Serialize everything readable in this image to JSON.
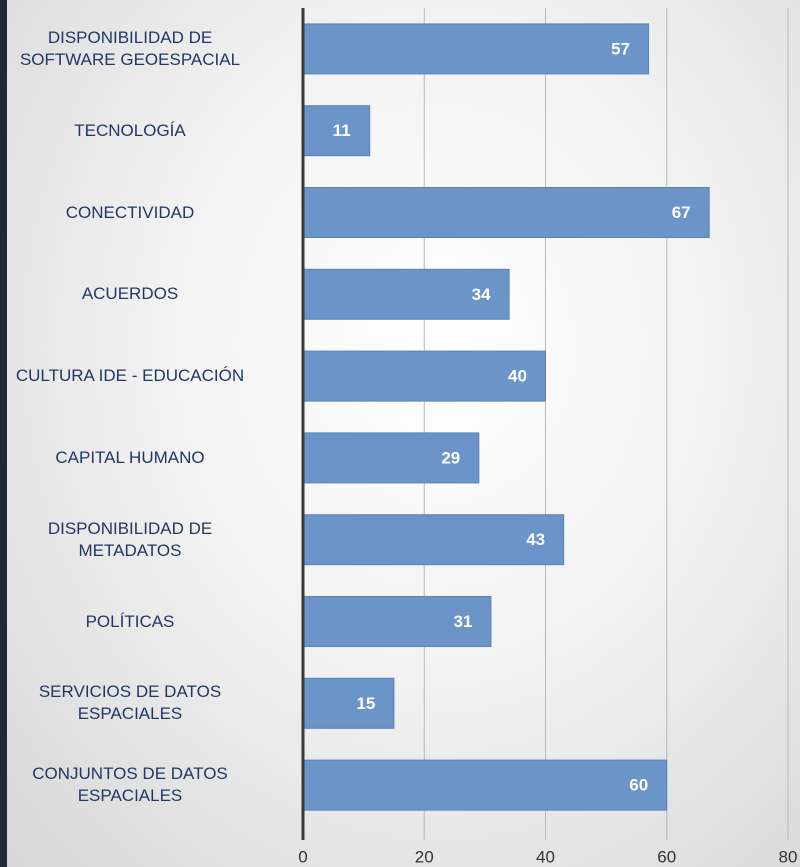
{
  "chart_data": {
    "type": "barh",
    "categories": [
      "DISPONIBILIDAD DE\nSOFTWARE GEOESPACIAL",
      "TECNOLOGÍA",
      "CONECTIVIDAD",
      "ACUERDOS",
      "CULTURA IDE - EDUCACIÓN",
      "CAPITAL HUMANO",
      "DISPONIBILIDAD DE\nMETADATOS",
      "POLÍTICAS",
      "SERVICIOS DE DATOS\nESPACIALES",
      "CONJUNTOS DE DATOS\nESPACIALES"
    ],
    "values": [
      57,
      11,
      67,
      34,
      40,
      29,
      43,
      31,
      15,
      60
    ],
    "color": "#6b94c9",
    "xlim": [
      0,
      80
    ],
    "xticks": [
      0,
      20,
      40,
      60,
      80
    ],
    "grid": true
  }
}
